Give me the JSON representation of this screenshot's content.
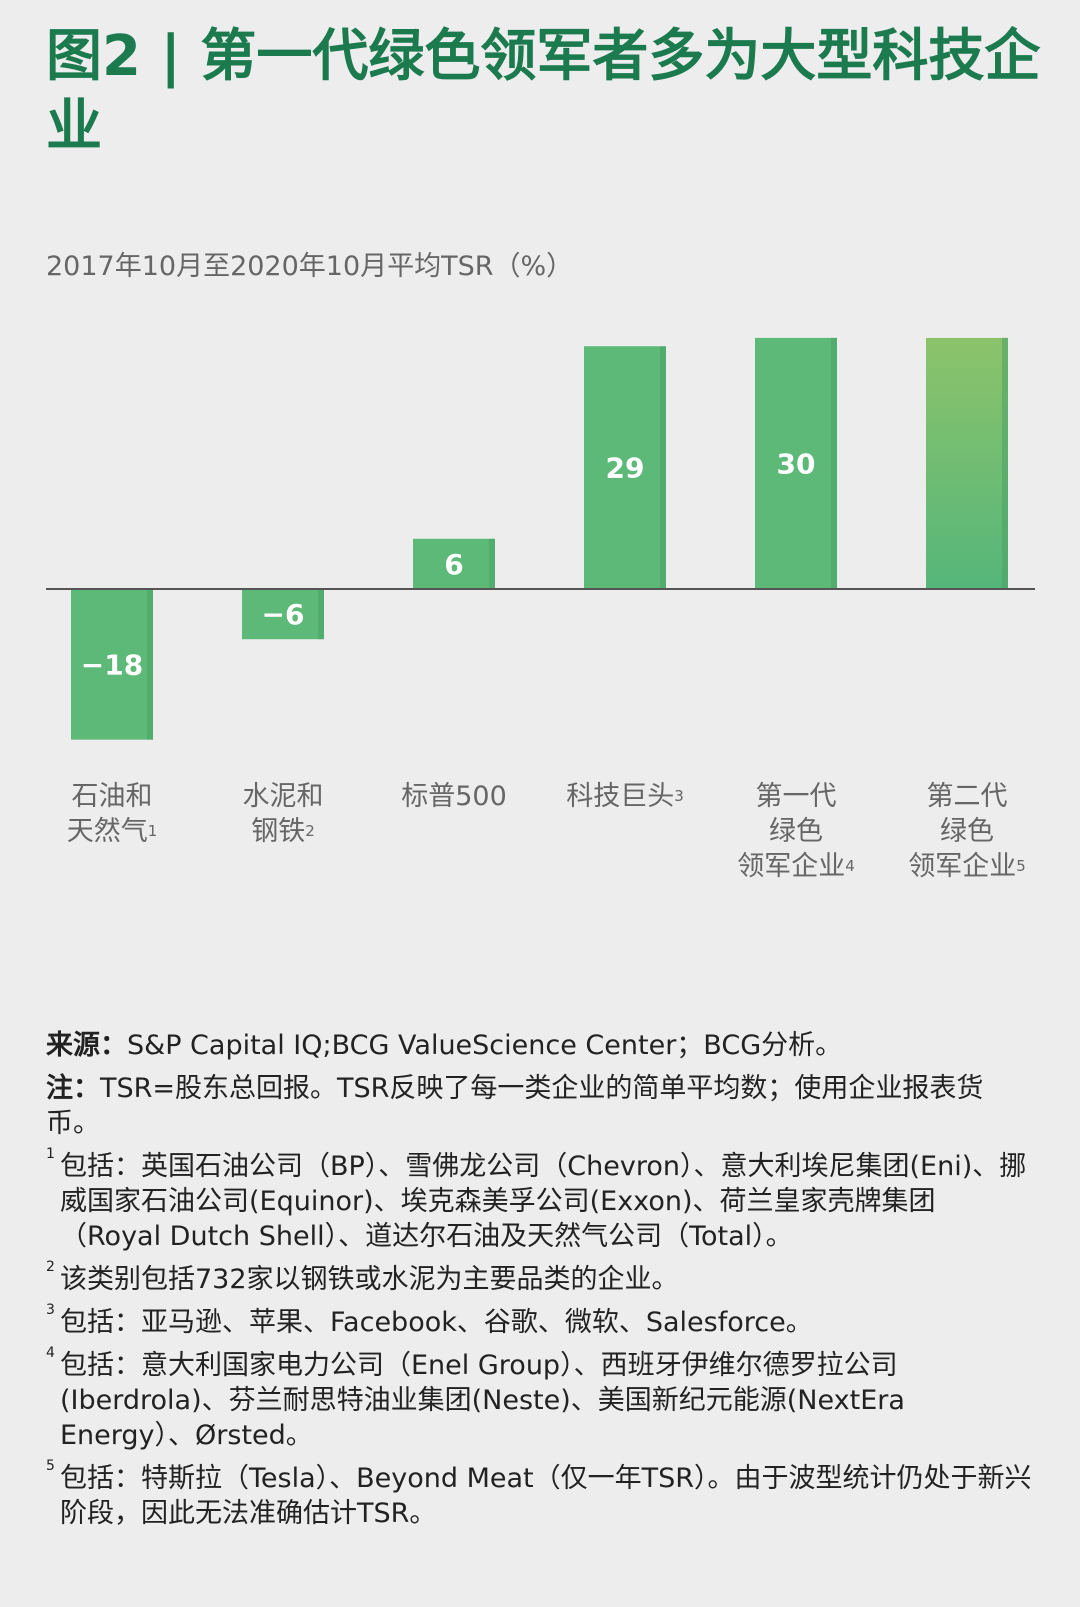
{
  "title": "图2 | 第一代绿色领军者多为大型科技企业",
  "subtitle": "2017年10月至2020年10月平均TSR（%）",
  "colors": {
    "title": "#1b7a4e",
    "bar": "#5cb978",
    "bar_shade": "#4aa366",
    "gradient_top": "#8cc36a",
    "gradient_bottom": "#55b67a",
    "axis": "#555555"
  },
  "chart_data": {
    "type": "bar",
    "categories": [
      [
        "石油和",
        "天然气"
      ],
      [
        "水泥和",
        "钢铁"
      ],
      [
        "标普500"
      ],
      [
        "科技巨头"
      ],
      [
        "第一代",
        "绿色",
        "领军企业"
      ],
      [
        "第二代",
        "绿色",
        "领军企业"
      ]
    ],
    "footnote_marks": [
      "1",
      "2",
      "",
      "3",
      "4",
      "5"
    ],
    "values": [
      -18,
      -6,
      6,
      29,
      30,
      null
    ],
    "value_labels": [
      "−18",
      "−6",
      "6",
      "29",
      "30",
      ""
    ],
    "ylim": [
      -18,
      30
    ],
    "gradient_last_bar": true,
    "grid": false,
    "legend": "none"
  },
  "notes": {
    "source_label": "来源：",
    "source_text": "S&P Capital IQ;BCG ValueScience Center；BCG分析。",
    "note_label": "注：",
    "note_text": "TSR=股东总回报。TSR反映了每一类企业的简单平均数；使用企业报表货币。",
    "footnotes": [
      {
        "mark": "1",
        "text": "包括：英国石油公司（BP）、雪佛龙公司（Chevron）、意大利埃尼集团(Eni)、挪威国家石油公司(Equinor)、埃克森美孚公司(Exxon)、荷兰皇家壳牌集团（Royal Dutch Shell）、道达尔石油及天然气公司（Total）。"
      },
      {
        "mark": "2",
        "text": "该类别包括732家以钢铁或水泥为主要品类的企业。"
      },
      {
        "mark": "3",
        "text": "包括：亚马逊、苹果、Facebook、谷歌、微软、Salesforce。"
      },
      {
        "mark": "4",
        "text": "包括：意大利国家电力公司（Enel Group）、西班牙伊维尔德罗拉公司(Iberdrola)、芬兰耐思特油业集团(Neste)、美国新纪元能源(NextEra Energy）、Ørsted。"
      },
      {
        "mark": "5",
        "text": "包括：特斯拉（Tesla）、Beyond Meat（仅一年TSR）。由于波型统计仍处于新兴阶段，因此无法准确估计TSR。"
      }
    ]
  }
}
